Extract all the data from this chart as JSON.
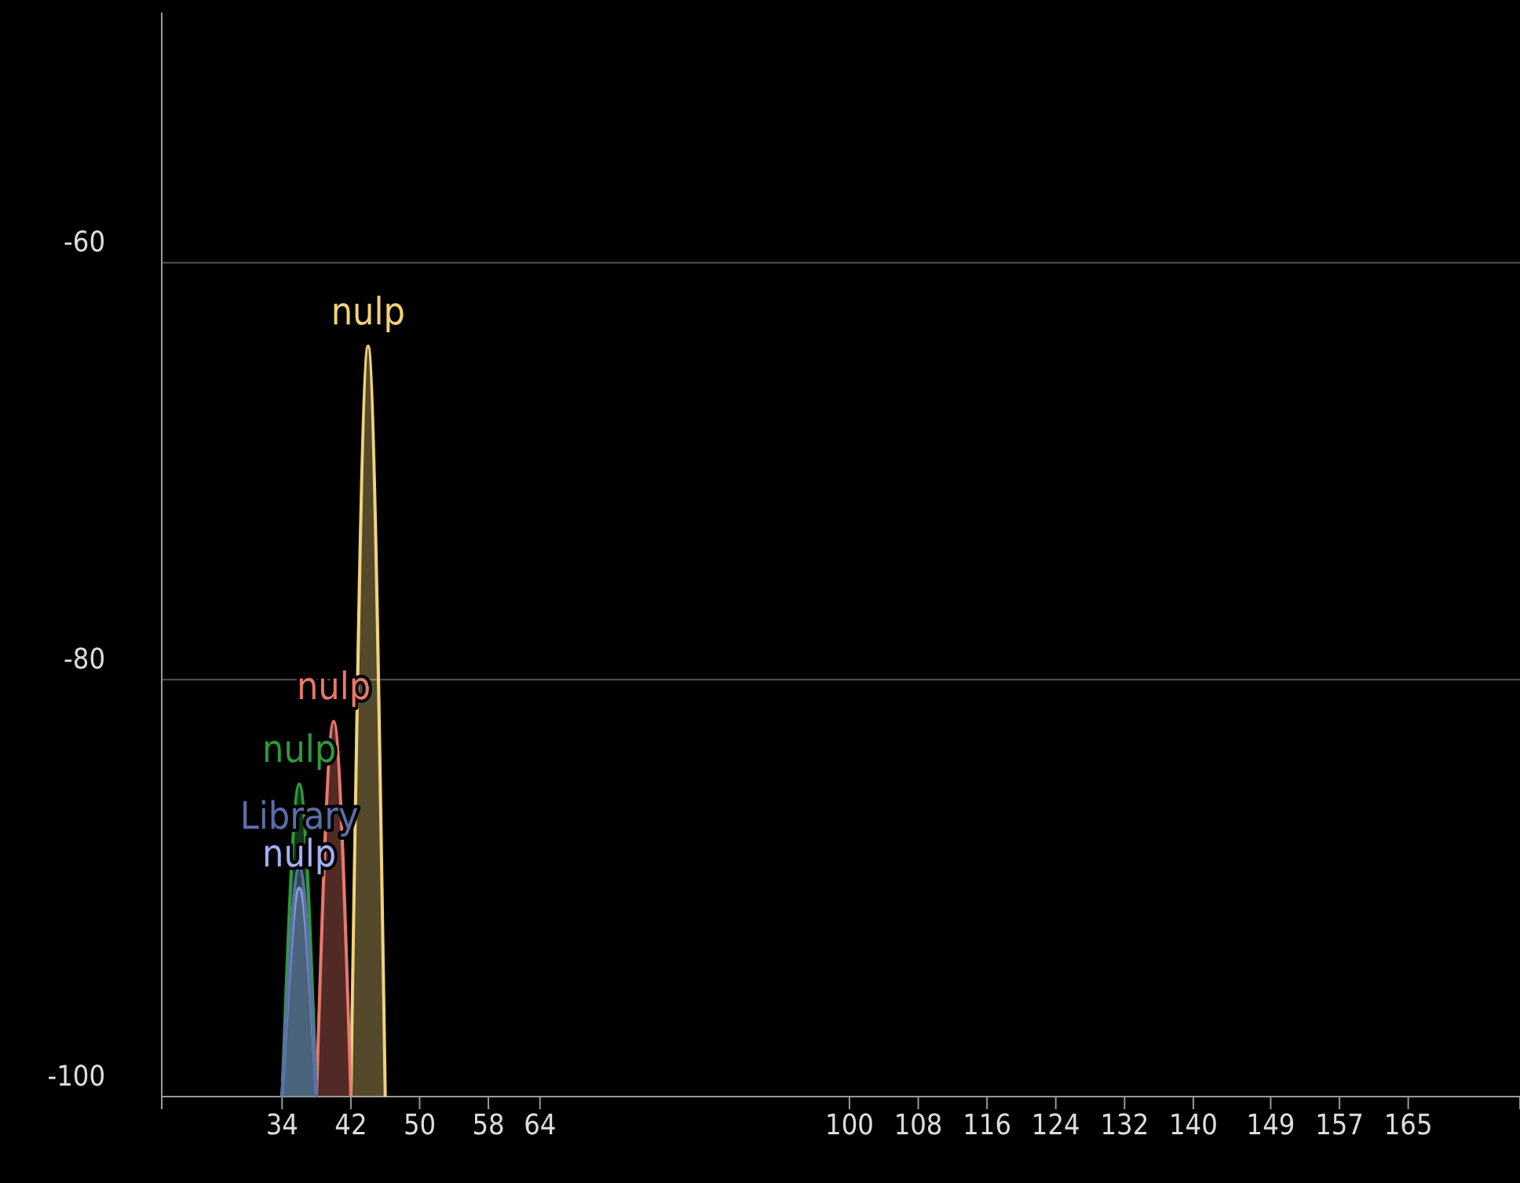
{
  "chart_data": {
    "type": "area",
    "xlim": [
      20,
      178
    ],
    "xticks": [
      34,
      42,
      50,
      58,
      64,
      100,
      108,
      116,
      124,
      132,
      140,
      149,
      157,
      165
    ],
    "ylim": [
      -100,
      -48
    ],
    "yticks": [
      -100,
      -80,
      -60
    ],
    "grid": "y",
    "legend": false,
    "series": [
      {
        "name": "nulp",
        "color": "#f0d27a",
        "x": [
          42,
          44,
          46
        ],
        "values": [
          -100,
          -64,
          -100
        ]
      },
      {
        "name": "nulp",
        "color": "#e8786c",
        "x": [
          38,
          40,
          42
        ],
        "values": [
          -100,
          -82,
          -100
        ]
      },
      {
        "name": "nulp",
        "color": "#2f9a3c",
        "x": [
          34,
          36,
          38
        ],
        "values": [
          -100,
          -85,
          -100
        ]
      },
      {
        "name": "nulp",
        "color": "#a4b0f5",
        "x": [
          34,
          36,
          38
        ],
        "values": [
          -100,
          -90,
          -100
        ]
      },
      {
        "name": "Library",
        "color": "#5a6ea8",
        "x": [
          34,
          36,
          38
        ],
        "values": [
          -100,
          -89,
          -100
        ]
      }
    ]
  }
}
